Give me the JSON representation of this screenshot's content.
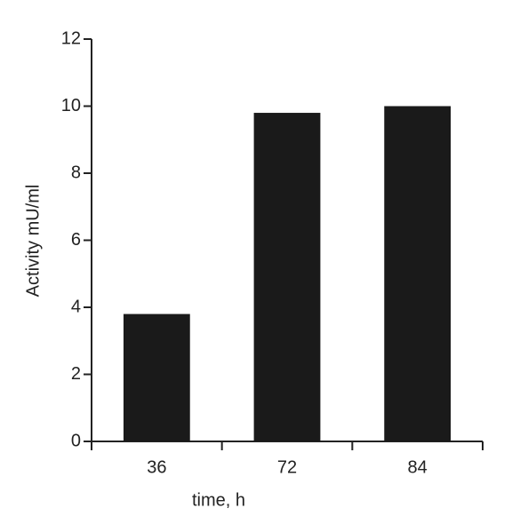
{
  "chart_data": {
    "type": "bar",
    "x_label": "time, h",
    "y_label": "Activity mU/ml",
    "categories": [
      "36",
      "72",
      "84"
    ],
    "values": [
      3.8,
      9.8,
      10.0
    ],
    "color": "#1a1a1a",
    "ylim": [
      0,
      12
    ],
    "yticks": [
      0,
      2,
      4,
      6,
      8,
      10,
      12
    ],
    "grid": false
  }
}
